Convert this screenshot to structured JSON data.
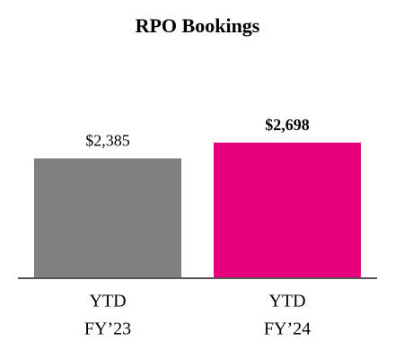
{
  "chart_data": {
    "type": "bar",
    "title": "RPO Bookings",
    "categories": [
      [
        "YTD",
        "FY’23"
      ],
      [
        "YTD",
        "FY’24"
      ]
    ],
    "values": [
      2385,
      2698
    ],
    "value_labels": [
      "$2,385",
      "$2,698"
    ],
    "colors": [
      "#808080",
      "#e6007e"
    ],
    "ylim": [
      0,
      3000
    ]
  }
}
